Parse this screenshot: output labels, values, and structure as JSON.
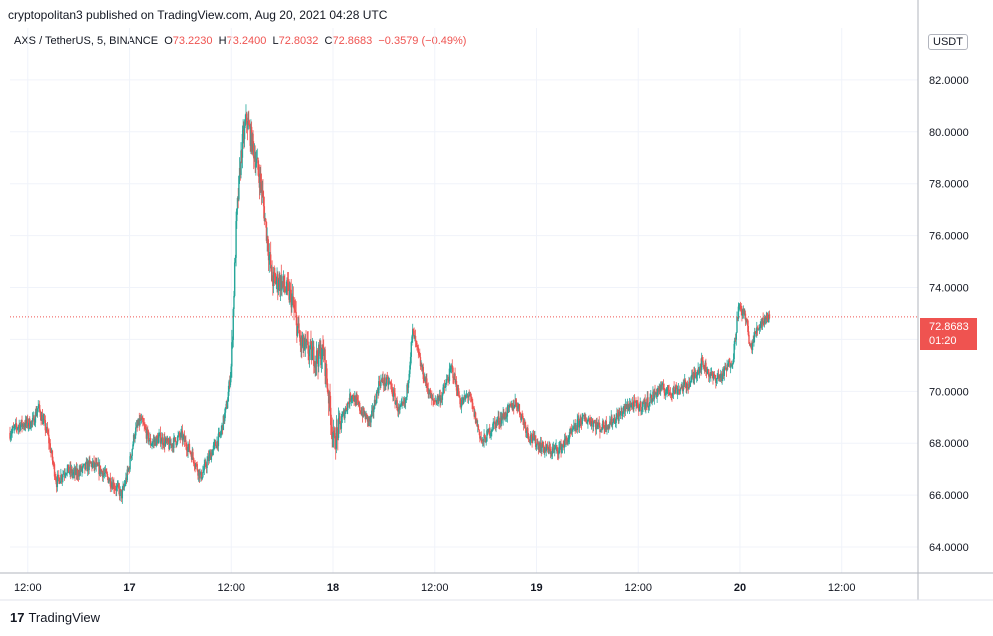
{
  "header": {
    "published": "cryptopolitan3 published on TradingView.com, Aug 20, 2021 04:28 UTC"
  },
  "legend": {
    "symbol": "AXS / TetherUS, 5, BINANCE",
    "o_label": "O",
    "o_value": "73.2230",
    "h_label": "H",
    "h_value": "73.2400",
    "l_label": "L",
    "l_value": "72.8032",
    "c_label": "C",
    "c_value": "72.8683",
    "change": "−0.3579 (−0.49%)"
  },
  "currency": "USDT",
  "last_price": {
    "value": "72.8683",
    "countdown": "01:20"
  },
  "brand": {
    "logo": "17",
    "name": "TradingView"
  },
  "colors": {
    "up": "#26a69a",
    "down": "#ef5350",
    "grid": "#f0f3fa",
    "axis_text": "#131722"
  },
  "chart_data": {
    "type": "candlestick",
    "title": "",
    "xlabel": "",
    "ylabel": "",
    "ylim": [
      63.0,
      84.0
    ],
    "y_ticks": [
      "64.0000",
      "66.0000",
      "68.0000",
      "70.0000",
      "72.0000",
      "74.0000",
      "76.0000",
      "78.0000",
      "80.0000",
      "82.0000"
    ],
    "x_ticks": [
      {
        "label": "12:00",
        "t": 12
      },
      {
        "label": "17",
        "t": 24
      },
      {
        "label": "12:00",
        "t": 36
      },
      {
        "label": "18",
        "t": 48
      },
      {
        "label": "12:00",
        "t": 60
      },
      {
        "label": "19",
        "t": 72
      },
      {
        "label": "12:00",
        "t": 84
      },
      {
        "label": "20",
        "t": 96
      },
      {
        "label": "12:00",
        "t": 108
      }
    ],
    "xlim": [
      9.9,
      117
    ],
    "grid": true,
    "last_price_line": 72.8683,
    "path": [
      [
        9.9,
        68.4
      ],
      [
        11,
        68.7
      ],
      [
        12.6,
        68.8
      ],
      [
        13.2,
        69.4
      ],
      [
        14.3,
        68.4
      ],
      [
        15.4,
        66.5
      ],
      [
        16.5,
        67.0
      ],
      [
        17.5,
        66.8
      ],
      [
        18.5,
        67.0
      ],
      [
        19.5,
        67.2
      ],
      [
        20.8,
        66.9
      ],
      [
        21.9,
        66.5
      ],
      [
        23.1,
        66.0
      ],
      [
        23.9,
        67.0
      ],
      [
        24.6,
        68.4
      ],
      [
        25.3,
        68.9
      ],
      [
        26.5,
        68.0
      ],
      [
        27.6,
        68.2
      ],
      [
        28.7,
        67.9
      ],
      [
        30.1,
        68.3
      ],
      [
        31.3,
        67.6
      ],
      [
        32.4,
        66.7
      ],
      [
        33.6,
        67.6
      ],
      [
        34.7,
        68.3
      ],
      [
        35.5,
        69.5
      ],
      [
        36.0,
        71.0
      ],
      [
        36.6,
        76.5
      ],
      [
        37.2,
        79.3
      ],
      [
        37.8,
        80.5
      ],
      [
        38.5,
        79.5
      ],
      [
        39.5,
        78.0
      ],
      [
        40.8,
        74.3
      ],
      [
        41.9,
        74.2
      ],
      [
        43.1,
        73.6
      ],
      [
        44.2,
        71.8
      ],
      [
        45.0,
        71.6
      ],
      [
        46.0,
        71.3
      ],
      [
        46.9,
        71.5
      ],
      [
        48.1,
        68.0
      ],
      [
        49.1,
        69.0
      ],
      [
        50.2,
        69.9
      ],
      [
        51.4,
        69.2
      ],
      [
        52.4,
        68.8
      ],
      [
        53.5,
        70.4
      ],
      [
        54.7,
        70.3
      ],
      [
        55.8,
        69.2
      ],
      [
        56.6,
        69.6
      ],
      [
        57.4,
        72.3
      ],
      [
        58.5,
        70.8
      ],
      [
        59.7,
        69.6
      ],
      [
        60.8,
        69.8
      ],
      [
        62.0,
        70.9
      ],
      [
        63.1,
        69.5
      ],
      [
        64.0,
        69.9
      ],
      [
        65.6,
        68.0
      ],
      [
        66.9,
        68.7
      ],
      [
        68.3,
        69.1
      ],
      [
        69.6,
        69.6
      ],
      [
        71.1,
        68.3
      ],
      [
        72.4,
        67.9
      ],
      [
        73.5,
        67.7
      ],
      [
        74.8,
        67.8
      ],
      [
        76.0,
        68.3
      ],
      [
        77.2,
        68.9
      ],
      [
        78.3,
        68.9
      ],
      [
        79.5,
        68.6
      ],
      [
        80.7,
        68.8
      ],
      [
        81.8,
        69.1
      ],
      [
        83.0,
        69.5
      ],
      [
        84.1,
        69.4
      ],
      [
        85.2,
        69.6
      ],
      [
        86.5,
        70.1
      ],
      [
        87.7,
        70.0
      ],
      [
        88.8,
        70.1
      ],
      [
        90.0,
        70.3
      ],
      [
        91.5,
        71.1
      ],
      [
        92.8,
        70.5
      ],
      [
        93.9,
        70.6
      ],
      [
        95.2,
        71.3
      ],
      [
        95.8,
        73.2
      ],
      [
        96.7,
        72.9
      ],
      [
        97.2,
        71.6
      ],
      [
        98.0,
        72.4
      ],
      [
        98.8,
        72.8
      ],
      [
        99.5,
        72.87
      ]
    ]
  }
}
